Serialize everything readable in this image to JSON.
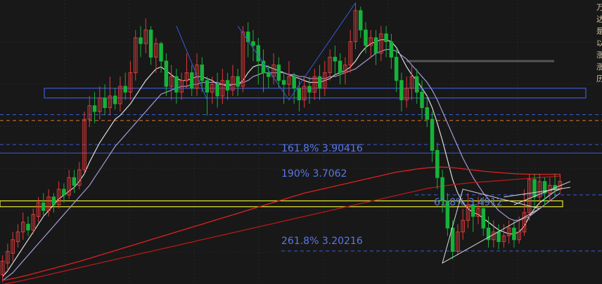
{
  "chart_data": {
    "type": "candlestick",
    "title": "",
    "ylim": [
      3.05,
      4.48
    ],
    "up_color": "#e03a3a",
    "down_color": "#16b23a",
    "wick_color_up": "#e03a3a",
    "wick_color_down": "#16b23a",
    "candles": [
      [
        3.08,
        3.15,
        3.04,
        3.18
      ],
      [
        3.14,
        3.2,
        3.1,
        3.24
      ],
      [
        3.19,
        3.26,
        3.15,
        3.3
      ],
      [
        3.25,
        3.3,
        3.22,
        3.34
      ],
      [
        3.3,
        3.35,
        3.26,
        3.4
      ],
      [
        3.34,
        3.31,
        3.28,
        3.38
      ],
      [
        3.31,
        3.39,
        3.29,
        3.42
      ],
      [
        3.38,
        3.45,
        3.35,
        3.48
      ],
      [
        3.45,
        3.41,
        3.38,
        3.5
      ],
      [
        3.41,
        3.48,
        3.38,
        3.52
      ],
      [
        3.48,
        3.44,
        3.4,
        3.5
      ],
      [
        3.44,
        3.52,
        3.42,
        3.56
      ],
      [
        3.52,
        3.49,
        3.45,
        3.55
      ],
      [
        3.49,
        3.58,
        3.47,
        3.62
      ],
      [
        3.58,
        3.54,
        3.5,
        3.62
      ],
      [
        3.54,
        3.62,
        3.52,
        3.66
      ],
      [
        3.62,
        3.88,
        3.6,
        3.92
      ],
      [
        3.88,
        3.95,
        3.84,
        4.0
      ],
      [
        3.95,
        3.92,
        3.86,
        4.02
      ],
      [
        3.92,
        3.99,
        3.88,
        4.05
      ],
      [
        3.99,
        3.94,
        3.9,
        4.06
      ],
      [
        3.94,
        4.0,
        3.9,
        4.1
      ],
      [
        4.0,
        3.96,
        3.93,
        4.04
      ],
      [
        3.96,
        4.05,
        3.92,
        4.1
      ],
      [
        4.05,
        4.02,
        3.98,
        4.12
      ],
      [
        4.02,
        4.12,
        3.98,
        4.18
      ],
      [
        4.12,
        4.3,
        4.08,
        4.34
      ],
      [
        4.3,
        4.27,
        4.2,
        4.36
      ],
      [
        4.27,
        4.34,
        4.22,
        4.4
      ],
      [
        4.34,
        4.2,
        4.16,
        4.36
      ],
      [
        4.2,
        4.27,
        4.12,
        4.3
      ],
      [
        4.27,
        4.18,
        4.12,
        4.28
      ],
      [
        4.18,
        4.05,
        4.0,
        4.22
      ],
      [
        4.05,
        4.1,
        3.98,
        4.16
      ],
      [
        4.1,
        4.02,
        3.96,
        4.14
      ],
      [
        4.02,
        4.08,
        3.98,
        4.12
      ],
      [
        4.08,
        4.12,
        4.04,
        4.22
      ],
      [
        4.12,
        4.04,
        4.0,
        4.16
      ],
      [
        4.04,
        4.16,
        4.0,
        4.22
      ],
      [
        4.16,
        4.08,
        4.02,
        4.2
      ],
      [
        4.08,
        4.02,
        3.9,
        4.1
      ],
      [
        4.02,
        4.06,
        3.96,
        4.1
      ],
      [
        4.06,
        4.0,
        3.94,
        4.12
      ],
      [
        4.0,
        4.08,
        3.96,
        4.14
      ],
      [
        4.08,
        4.03,
        3.98,
        4.12
      ],
      [
        4.03,
        4.1,
        4.0,
        4.16
      ],
      [
        4.1,
        4.05,
        4.0,
        4.14
      ],
      [
        4.05,
        4.33,
        4.02,
        4.36
      ],
      [
        4.33,
        4.28,
        4.2,
        4.38
      ],
      [
        4.28,
        4.26,
        4.18,
        4.34
      ],
      [
        4.26,
        4.18,
        4.06,
        4.3
      ],
      [
        4.18,
        4.12,
        4.02,
        4.24
      ],
      [
        4.12,
        4.1,
        4.04,
        4.16
      ],
      [
        4.1,
        4.16,
        4.06,
        4.22
      ],
      [
        4.16,
        4.08,
        4.04,
        4.2
      ],
      [
        4.08,
        4.06,
        3.96,
        4.12
      ],
      [
        4.06,
        4.1,
        4.0,
        4.18
      ],
      [
        4.1,
        4.04,
        3.96,
        4.12
      ],
      [
        4.04,
        3.98,
        3.92,
        4.08
      ],
      [
        3.98,
        4.05,
        3.94,
        4.1
      ],
      [
        4.05,
        4.02,
        3.96,
        4.1
      ],
      [
        4.02,
        4.1,
        3.98,
        4.14
      ],
      [
        4.1,
        4.04,
        3.98,
        4.16
      ],
      [
        4.04,
        4.12,
        4.0,
        4.18
      ],
      [
        4.12,
        4.2,
        4.08,
        4.24
      ],
      [
        4.2,
        4.18,
        4.1,
        4.26
      ],
      [
        4.18,
        4.12,
        4.06,
        4.22
      ],
      [
        4.12,
        4.16,
        4.06,
        4.2
      ],
      [
        4.16,
        4.28,
        4.12,
        4.34
      ],
      [
        4.28,
        4.44,
        4.24,
        4.48
      ],
      [
        4.44,
        4.34,
        4.3,
        4.46
      ],
      [
        4.34,
        4.26,
        4.22,
        4.38
      ],
      [
        4.26,
        4.3,
        4.2,
        4.34
      ],
      [
        4.3,
        4.22,
        4.16,
        4.34
      ],
      [
        4.22,
        4.32,
        4.18,
        4.36
      ],
      [
        4.32,
        4.28,
        4.2,
        4.36
      ],
      [
        4.28,
        4.2,
        4.14,
        4.32
      ],
      [
        4.2,
        4.08,
        4.02,
        4.24
      ],
      [
        4.08,
        3.98,
        3.92,
        4.12
      ],
      [
        3.98,
        4.04,
        3.94,
        4.1
      ],
      [
        4.04,
        4.1,
        3.98,
        4.16
      ],
      [
        4.1,
        4.02,
        3.96,
        4.14
      ],
      [
        4.02,
        3.94,
        3.88,
        4.08
      ],
      [
        3.94,
        3.88,
        3.84,
        4.0
      ],
      [
        3.88,
        3.72,
        3.66,
        3.92
      ],
      [
        3.72,
        3.58,
        3.52,
        3.76
      ],
      [
        3.58,
        3.46,
        3.4,
        3.62
      ],
      [
        3.46,
        3.32,
        3.28,
        3.5
      ],
      [
        3.32,
        3.2,
        3.16,
        3.36
      ],
      [
        3.2,
        3.3,
        3.18,
        3.34
      ],
      [
        3.3,
        3.36,
        3.26,
        3.42
      ],
      [
        3.36,
        3.44,
        3.32,
        3.5
      ],
      [
        3.44,
        3.38,
        3.3,
        3.46
      ],
      [
        3.38,
        3.42,
        3.34,
        3.48
      ],
      [
        3.42,
        3.32,
        3.28,
        3.48
      ],
      [
        3.32,
        3.26,
        3.22,
        3.38
      ],
      [
        3.26,
        3.3,
        3.22,
        3.36
      ],
      [
        3.3,
        3.25,
        3.21,
        3.34
      ],
      [
        3.25,
        3.28,
        3.22,
        3.34
      ],
      [
        3.28,
        3.32,
        3.24,
        3.36
      ],
      [
        3.32,
        3.26,
        3.22,
        3.36
      ],
      [
        3.26,
        3.3,
        3.24,
        3.38
      ],
      [
        3.3,
        3.4,
        3.28,
        3.52
      ],
      [
        3.4,
        3.57,
        3.36,
        3.6
      ],
      [
        3.57,
        3.48,
        3.42,
        3.6
      ],
      [
        3.48,
        3.56,
        3.44,
        3.6
      ],
      [
        3.56,
        3.5,
        3.44,
        3.58
      ],
      [
        3.5,
        3.54,
        3.46,
        3.58
      ],
      [
        3.54,
        3.52,
        3.48,
        3.6
      ],
      [
        3.52,
        3.56,
        3.5,
        3.6
      ]
    ],
    "moving_averages": [
      {
        "color": "#dcdcdc",
        "width": 1.2,
        "values": [
          3.07,
          3.1,
          3.14,
          3.18,
          3.22,
          3.26,
          3.3,
          3.34,
          3.38,
          3.41,
          3.44,
          3.47,
          3.49,
          3.51,
          3.53,
          3.56,
          3.6,
          3.66,
          3.71,
          3.76,
          3.8,
          3.84,
          3.88,
          3.9,
          3.93,
          3.96,
          4.0,
          4.04,
          4.08,
          4.11,
          4.14,
          4.15,
          4.13,
          4.11,
          4.09,
          4.08,
          4.08,
          4.09,
          4.1,
          4.1,
          4.09,
          4.08,
          4.06,
          4.06,
          4.05,
          4.06,
          4.06,
          4.08,
          4.12,
          4.15,
          4.16,
          4.16,
          4.15,
          4.14,
          4.13,
          4.12,
          4.11,
          4.1,
          4.09,
          4.08,
          4.07,
          4.07,
          4.07,
          4.08,
          4.09,
          4.11,
          4.12,
          4.13,
          4.15,
          4.18,
          4.22,
          4.25,
          4.27,
          4.28,
          4.29,
          4.29,
          4.28,
          4.25,
          4.2,
          4.15,
          4.11,
          4.08,
          4.04,
          4.0,
          3.94,
          3.86,
          3.77,
          3.67,
          3.57,
          3.5,
          3.45,
          3.42,
          3.4,
          3.39,
          3.37,
          3.35,
          3.33,
          3.31,
          3.3,
          3.29,
          3.29,
          3.3,
          3.33,
          3.38,
          3.42,
          3.45,
          3.47,
          3.49,
          3.51,
          3.52
        ]
      },
      {
        "color": "#a898d8",
        "width": 1.2,
        "values": [
          3.05,
          3.07,
          3.09,
          3.12,
          3.15,
          3.18,
          3.21,
          3.24,
          3.27,
          3.3,
          3.33,
          3.36,
          3.39,
          3.42,
          3.45,
          3.48,
          3.51,
          3.54,
          3.58,
          3.62,
          3.66,
          3.7,
          3.74,
          3.77,
          3.8,
          3.83,
          3.86,
          3.89,
          3.92,
          3.95,
          3.98,
          4.01,
          4.02,
          4.03,
          4.04,
          4.05,
          4.05,
          4.06,
          4.06,
          4.07,
          4.07,
          4.07,
          4.07,
          4.06,
          4.06,
          4.06,
          4.06,
          4.07,
          4.08,
          4.1,
          4.11,
          4.12,
          4.12,
          4.12,
          4.12,
          4.12,
          4.11,
          4.11,
          4.1,
          4.1,
          4.09,
          4.09,
          4.09,
          4.09,
          4.1,
          4.1,
          4.11,
          4.12,
          4.13,
          4.14,
          4.16,
          4.18,
          4.2,
          4.22,
          4.23,
          4.24,
          4.24,
          4.23,
          4.21,
          4.19,
          4.16,
          4.13,
          4.1,
          4.07,
          4.03,
          3.98,
          3.92,
          3.86,
          3.8,
          3.74,
          3.68,
          3.63,
          3.58,
          3.54,
          3.5,
          3.47,
          3.44,
          3.41,
          3.39,
          3.37,
          3.36,
          3.36,
          3.37,
          3.38,
          3.4,
          3.42,
          3.44,
          3.46,
          3.48,
          3.5
        ]
      },
      {
        "color": "#e02020",
        "width": 1.3,
        "values": [
          3.05,
          3.055,
          3.06,
          3.066,
          3.072,
          3.078,
          3.085,
          3.092,
          3.099,
          3.106,
          3.113,
          3.12,
          3.127,
          3.134,
          3.141,
          3.148,
          3.156,
          3.164,
          3.172,
          3.18,
          3.188,
          3.196,
          3.204,
          3.212,
          3.22,
          3.228,
          3.236,
          3.244,
          3.252,
          3.26,
          3.268,
          3.276,
          3.284,
          3.292,
          3.3,
          3.308,
          3.316,
          3.324,
          3.332,
          3.34,
          3.348,
          3.356,
          3.364,
          3.372,
          3.38,
          3.388,
          3.396,
          3.404,
          3.412,
          3.42,
          3.428,
          3.436,
          3.444,
          3.452,
          3.46,
          3.468,
          3.476,
          3.484,
          3.492,
          3.5,
          3.506,
          3.512,
          3.518,
          3.524,
          3.53,
          3.536,
          3.542,
          3.548,
          3.554,
          3.56,
          3.566,
          3.572,
          3.578,
          3.584,
          3.59,
          3.596,
          3.602,
          3.608,
          3.612,
          3.616,
          3.62,
          3.624,
          3.627,
          3.63,
          3.632,
          3.634,
          3.634,
          3.633,
          3.631,
          3.628,
          3.625,
          3.622,
          3.619,
          3.616,
          3.613,
          3.61,
          3.608,
          3.606,
          3.604,
          3.602,
          3.6,
          3.599,
          3.598,
          3.597,
          3.597,
          3.597,
          3.597,
          3.597,
          3.597,
          3.597
        ]
      },
      {
        "color": "#b81818",
        "width": 1.3,
        "values": [
          3.03,
          3.035,
          3.04,
          3.045,
          3.05,
          3.056,
          3.062,
          3.068,
          3.074,
          3.08,
          3.086,
          3.092,
          3.098,
          3.104,
          3.11,
          3.116,
          3.122,
          3.128,
          3.134,
          3.14,
          3.146,
          3.152,
          3.158,
          3.164,
          3.17,
          3.176,
          3.182,
          3.188,
          3.194,
          3.2,
          3.206,
          3.212,
          3.218,
          3.224,
          3.23,
          3.236,
          3.242,
          3.248,
          3.254,
          3.26,
          3.266,
          3.272,
          3.278,
          3.284,
          3.29,
          3.296,
          3.302,
          3.308,
          3.314,
          3.32,
          3.326,
          3.332,
          3.338,
          3.344,
          3.35,
          3.356,
          3.362,
          3.368,
          3.374,
          3.38,
          3.386,
          3.392,
          3.398,
          3.404,
          3.41,
          3.416,
          3.422,
          3.428,
          3.434,
          3.44,
          3.446,
          3.452,
          3.458,
          3.464,
          3.47,
          3.476,
          3.482,
          3.488,
          3.494,
          3.5,
          3.506,
          3.512,
          3.518,
          3.524,
          3.528,
          3.532,
          3.536,
          3.54,
          3.543,
          3.546,
          3.549,
          3.552,
          3.554,
          3.556,
          3.558,
          3.56,
          3.562,
          3.564,
          3.566,
          3.568,
          3.57,
          3.572,
          3.574,
          3.576,
          3.578,
          3.58,
          3.582,
          3.584,
          3.586,
          3.588
        ]
      }
    ],
    "reference_lines": [
      {
        "price": 3.9042,
        "color": "#3c5ad8",
        "style": "dashed",
        "label": "161.8% 3.90416"
      },
      {
        "price": 3.7062,
        "color": "#3c5ad8",
        "style": "solid",
        "label": "190% 3.7062"
      },
      {
        "price": 3.20216,
        "color": "#3c5ad8",
        "style": "dashed",
        "label": "261.8% 3.20216"
      },
      {
        "price": 3.4912,
        "color": "#3c5ad8",
        "style": "dashed",
        "label": "61.8% 3.4912"
      },
      {
        "price": 3.874,
        "color": "#e07a30",
        "style": "dashed",
        "label": ""
      },
      {
        "price": 3.75,
        "color": "#3c5ad8",
        "style": "dashed",
        "label": ""
      },
      {
        "price": 4.52,
        "color": "#7a7a7a",
        "style": "dashdot",
        "label": ""
      }
    ],
    "zones": [
      {
        "low": 3.99,
        "high": 4.04,
        "color": "#3c5ad8"
      },
      {
        "low": 3.43,
        "high": 3.46,
        "color": "#e8e830"
      }
    ],
    "gray_level": {
      "price": 4.18,
      "color": "#555555"
    },
    "side_text": [
      "万",
      "达",
      "是",
      "以",
      "涨",
      "涨",
      "历"
    ]
  }
}
